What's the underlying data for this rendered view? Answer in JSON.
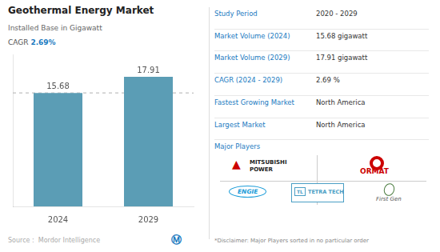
{
  "chart_data": {
    "type": "bar",
    "title": "Geothermal Energy Market",
    "subtitle": "Installed Base in Gigawatt",
    "categories": [
      "2024",
      "2029"
    ],
    "values": [
      15.68,
      17.91
    ],
    "color": "#5b9db5",
    "ylim": [
      0,
      21
    ],
    "grid": false,
    "data_labels": true,
    "tick_labels": "x",
    "annotations": [
      "CAGR ",
      "2.69%",
      "Source :  Mordor Intelligence",
      "Ⓜ",
      "Study Period",
      "2020 - 2029",
      "Market Volume (2024)",
      "15.68 gigawatt",
      "Market Volume (2029)",
      "17.91 gigawatt",
      "CAGR (2024 - 2029)",
      "2.69 %",
      "Fastest Growing Market",
      "North America",
      "Largest Market",
      "North America",
      "Major Players",
      "▲",
      "MITSUBISHI",
      "POWER",
      "ORMAT",
      "ENGIE",
      "TL",
      "TETRA TECH",
      "First Gen",
      "*Disclaimer: Major Players sorted in no particular order"
    ]
  }
}
